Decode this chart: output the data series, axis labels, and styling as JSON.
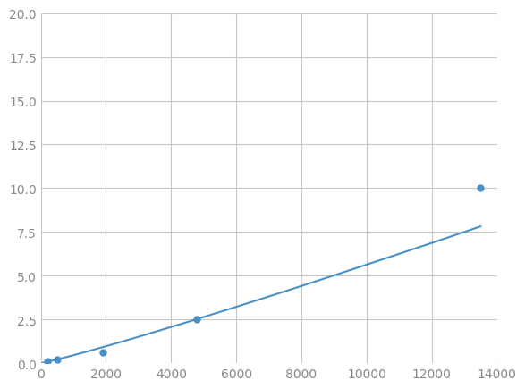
{
  "x": [
    200,
    500,
    1900,
    4800,
    13500
  ],
  "y": [
    0.1,
    0.2,
    0.6,
    2.5,
    10.0
  ],
  "line_color": "#4a90c4",
  "marker_color": "#4a90c4",
  "marker_size": 5,
  "line_width": 1.5,
  "xlim": [
    0,
    14000
  ],
  "ylim": [
    0,
    20.0
  ],
  "xticks": [
    0,
    2000,
    4000,
    6000,
    8000,
    10000,
    12000,
    14000
  ],
  "yticks": [
    0.0,
    2.5,
    5.0,
    7.5,
    10.0,
    12.5,
    15.0,
    17.5,
    20.0
  ],
  "grid_color": "#c8c8c8",
  "background_color": "#ffffff",
  "tick_label_fontsize": 10,
  "tick_color": "#888888"
}
